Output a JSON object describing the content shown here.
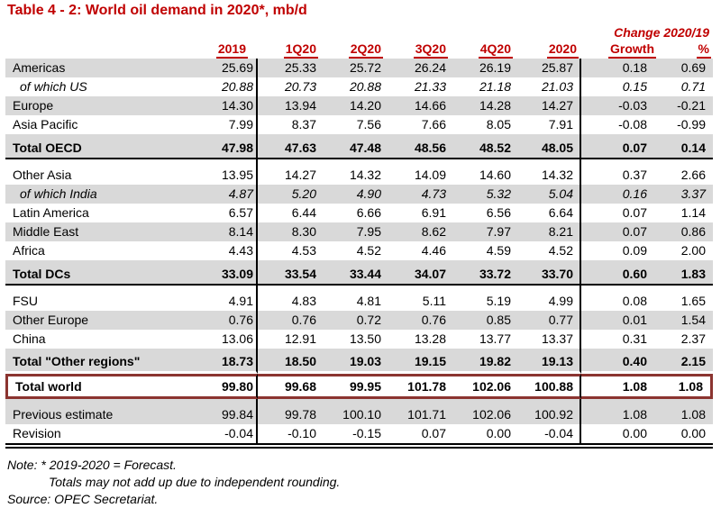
{
  "title": "Table 4 - 2: World oil demand in 2020*, mb/d",
  "header": {
    "change_label": "Change 2020/19",
    "columns": [
      "2019",
      "1Q20",
      "2Q20",
      "3Q20",
      "4Q20",
      "2020",
      "Growth",
      "%"
    ]
  },
  "table": {
    "rows": [
      {
        "label": "Americas",
        "flags": "shade",
        "values": [
          "25.69",
          "25.33",
          "25.72",
          "26.24",
          "26.19",
          "25.87",
          "0.18",
          "0.69"
        ]
      },
      {
        "label": "of which US",
        "flags": "sub",
        "values": [
          "20.88",
          "20.73",
          "20.88",
          "21.33",
          "21.18",
          "21.03",
          "0.15",
          "0.71"
        ]
      },
      {
        "label": "Europe",
        "flags": "shade",
        "values": [
          "14.30",
          "13.94",
          "14.20",
          "14.66",
          "14.28",
          "14.27",
          "-0.03",
          "-0.21"
        ]
      },
      {
        "label": "Asia Pacific",
        "flags": "",
        "values": [
          "7.99",
          "8.37",
          "7.56",
          "7.66",
          "8.05",
          "7.91",
          "-0.08",
          "-0.99"
        ]
      },
      {
        "label": "Total OECD",
        "flags": "shade total divider tall",
        "values": [
          "47.98",
          "47.63",
          "47.48",
          "48.56",
          "48.52",
          "48.05",
          "0.07",
          "0.14"
        ]
      },
      {
        "label": "Other Asia",
        "flags": "tall",
        "values": [
          "13.95",
          "14.27",
          "14.32",
          "14.09",
          "14.60",
          "14.32",
          "0.37",
          "2.66"
        ]
      },
      {
        "label": "of which India",
        "flags": "sub shade",
        "values": [
          "4.87",
          "5.20",
          "4.90",
          "4.73",
          "5.32",
          "5.04",
          "0.16",
          "3.37"
        ]
      },
      {
        "label": "Latin America",
        "flags": "",
        "values": [
          "6.57",
          "6.44",
          "6.66",
          "6.91",
          "6.56",
          "6.64",
          "0.07",
          "1.14"
        ]
      },
      {
        "label": "Middle East",
        "flags": "shade",
        "values": [
          "8.14",
          "8.30",
          "7.95",
          "8.62",
          "7.97",
          "8.21",
          "0.07",
          "0.86"
        ]
      },
      {
        "label": "Africa",
        "flags": "",
        "values": [
          "4.43",
          "4.53",
          "4.52",
          "4.46",
          "4.59",
          "4.52",
          "0.09",
          "2.00"
        ]
      },
      {
        "label": "Total DCs",
        "flags": "shade total divider tall",
        "values": [
          "33.09",
          "33.54",
          "33.44",
          "34.07",
          "33.72",
          "33.70",
          "0.60",
          "1.83"
        ]
      },
      {
        "label": "FSU",
        "flags": "tall",
        "values": [
          "4.91",
          "4.83",
          "4.81",
          "5.11",
          "5.19",
          "4.99",
          "0.08",
          "1.65"
        ]
      },
      {
        "label": "Other Europe",
        "flags": "shade",
        "values": [
          "0.76",
          "0.76",
          "0.72",
          "0.76",
          "0.85",
          "0.77",
          "0.01",
          "1.54"
        ]
      },
      {
        "label": "China",
        "flags": "",
        "values": [
          "13.06",
          "12.91",
          "13.50",
          "13.28",
          "13.77",
          "13.37",
          "0.31",
          "2.37"
        ]
      },
      {
        "label": "Total \"Other regions\"",
        "flags": "shade total gap-below tall",
        "values": [
          "18.73",
          "18.50",
          "19.03",
          "19.15",
          "19.82",
          "19.13",
          "0.40",
          "2.15"
        ]
      },
      {
        "label": "Total world",
        "flags": "total box tall",
        "values": [
          "99.80",
          "99.68",
          "99.95",
          "101.78",
          "102.06",
          "100.88",
          "1.08",
          "1.08"
        ]
      },
      {
        "label": "Previous estimate",
        "flags": "shade tall",
        "values": [
          "99.84",
          "99.78",
          "100.10",
          "101.71",
          "102.06",
          "100.92",
          "1.08",
          "1.08"
        ]
      },
      {
        "label": "Revision",
        "flags": "",
        "values": [
          "-0.04",
          "-0.10",
          "-0.15",
          "0.07",
          "0.00",
          "-0.04",
          "0.00",
          "0.00"
        ]
      }
    ]
  },
  "notes": [
    "Note: * 2019-2020 = Forecast.",
    "Totals may not add up due to independent rounding.",
    "Source: OPEC Secretariat."
  ],
  "colors": {
    "accent_red": "#c00000",
    "highlight_box_border": "#8b3430",
    "row_shade": "#d9d9d9"
  }
}
